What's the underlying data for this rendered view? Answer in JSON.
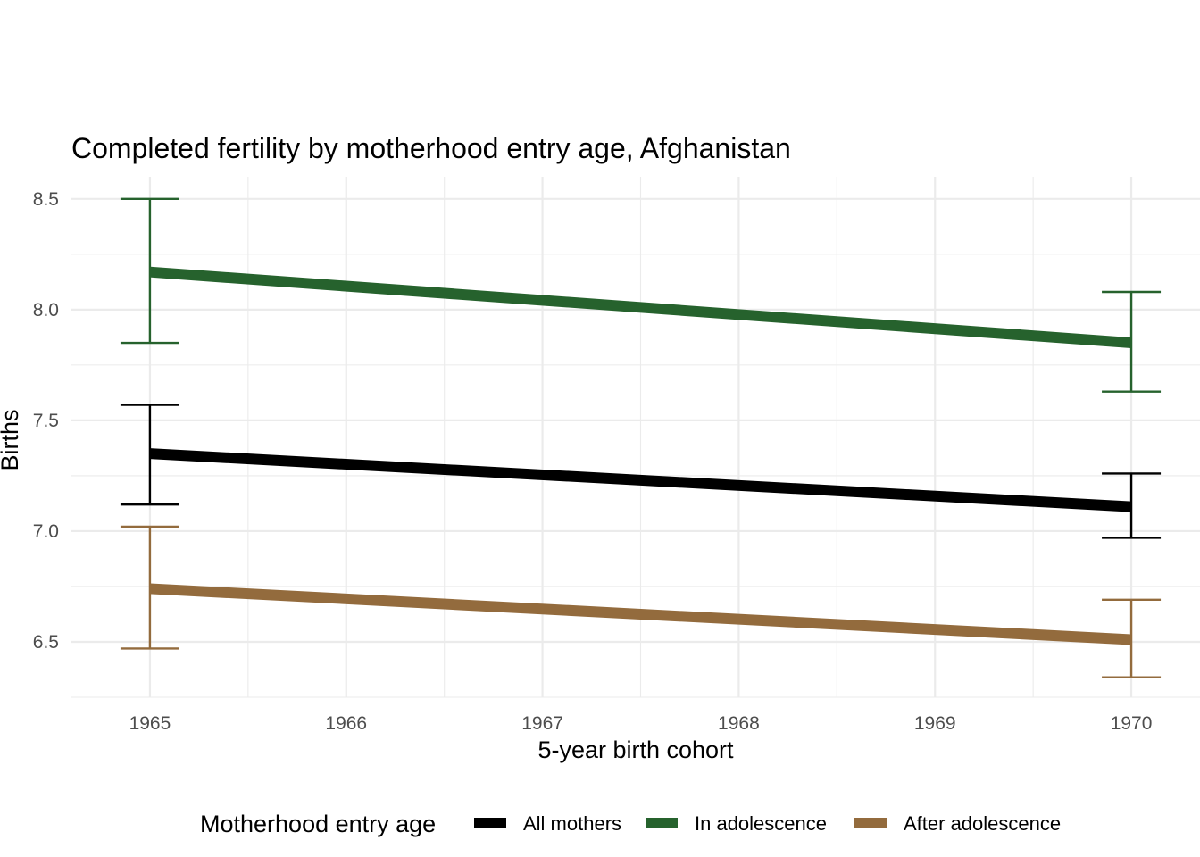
{
  "chart_data": {
    "type": "line",
    "title": "Completed fertility by motherhood entry age,  Afghanistan",
    "xlabel": "5-year birth cohort",
    "ylabel": "Births",
    "x": [
      1965,
      1970
    ],
    "x_ticks": [
      "1965",
      "1966",
      "1967",
      "1968",
      "1969",
      "1970"
    ],
    "y_ticks": [
      "6.5",
      "7.0",
      "7.5",
      "8.0",
      "8.5"
    ],
    "ylim": [
      6.25,
      8.6
    ],
    "xlim": [
      1964.6,
      1970.35
    ],
    "grid": true,
    "legend": {
      "title": "Motherhood entry age",
      "position": "bottom"
    },
    "series": [
      {
        "name": "All mothers",
        "color": "#000000",
        "values": [
          7.35,
          7.11
        ],
        "ci_low": [
          7.12,
          6.97
        ],
        "ci_high": [
          7.57,
          7.26
        ]
      },
      {
        "name": "In adolescence",
        "color": "#26622d",
        "values": [
          8.17,
          7.85
        ],
        "ci_low": [
          7.85,
          7.63
        ],
        "ci_high": [
          8.5,
          8.08
        ]
      },
      {
        "name": "After adolescence",
        "color": "#936b3d",
        "values": [
          6.74,
          6.51
        ],
        "ci_low": [
          6.47,
          6.34
        ],
        "ci_high": [
          7.02,
          6.69
        ]
      }
    ]
  }
}
